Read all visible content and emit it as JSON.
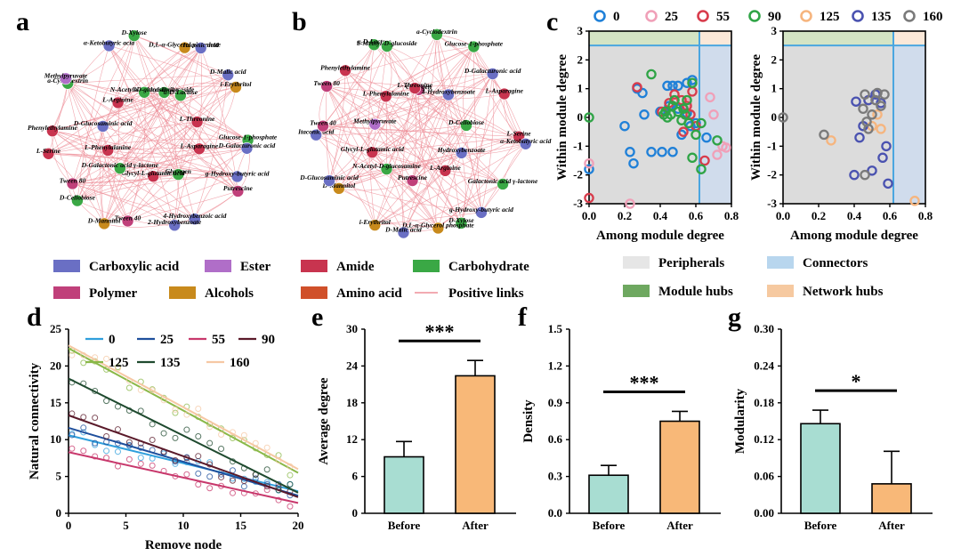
{
  "figure": {
    "panel_labels": [
      "a",
      "b",
      "c",
      "d",
      "e",
      "f",
      "g"
    ],
    "network_a": {
      "labels": [
        "b-Methyl-D-glucoside",
        "D,L-α-Glycerol phosphate",
        "Itaconic acid",
        "α-D-Lactose",
        "D-Malic acid",
        "i-Erythritol",
        "L-Threonine",
        "Glucose-1-phosphate",
        "D-Galacturonic acid",
        "L-Asparagine",
        "g-Hydroxy-butyric acid",
        "Putrescine",
        "Glycogen",
        "4-Hydroxybenzoic acid",
        "2-Hydroxybenzoate",
        "Glycyl-L-glutamic acid",
        "Tween 40",
        "D-Mannitol",
        "D-Galactonic acid γ-lactone",
        "D-Cellobiose",
        "Tween 80",
        "L-Phenylalanine",
        "L-Serine",
        "Phenylethylamine",
        "D-Glucosaminic acid",
        "a-Cyclodextrin",
        "Methylpyruvate",
        "L-Arginine",
        "α-Ketobutyric acid",
        "D-Xylose",
        "N-Acetyl-D-glucosamine"
      ],
      "categories": [
        "green",
        "orange",
        "blue",
        "green",
        "blue",
        "orange",
        "red",
        "green",
        "blue",
        "red",
        "blue",
        "pink",
        "green",
        "blue",
        "blue",
        "red",
        "pink",
        "orange",
        "green",
        "green",
        "pink",
        "red",
        "red",
        "red",
        "blue",
        "green",
        "purple",
        "red",
        "blue",
        "green",
        "green"
      ]
    },
    "network_b": {
      "labels": [
        "Glycogen",
        "a-Cyclodextrin",
        "Glucose-1-phosphate",
        "4-Hydroxybenzoate",
        "D-Galacturonic acid",
        "L-Asparagine",
        "D-Cellobiose",
        "L-Serine",
        "α-Ketobutyric acid",
        "Hydroxybenzoate",
        "Galactonic acid γ-lactone",
        "g-Hydroxy-butyric acid",
        "L-Arginine",
        "D-Xylose",
        "D,L-α-Glycerol phosphate",
        "Putrescine",
        "D-Malic acid",
        "i-Erythritol",
        "N-Acetyl-D-glucosamine",
        "D-Mannitol",
        "D-Glucosaminic acid",
        "Glycyl-L-glutamic acid",
        "Itaconic acid",
        "Tween 40",
        "Methylpyruvate",
        "Tween 80",
        "Phenylethylamine",
        "L-Phenylalanine",
        "α-D-Lactose",
        "b-Methyl-D-glucoside",
        "L-Threonine"
      ],
      "categories": [
        "pink",
        "green",
        "green",
        "blue",
        "blue",
        "red",
        "green",
        "red",
        "blue",
        "blue",
        "green",
        "blue",
        "red",
        "green",
        "orange",
        "pink",
        "blue",
        "orange",
        "green",
        "orange",
        "blue",
        "red",
        "blue",
        "pink",
        "purple",
        "pink",
        "red",
        "red",
        "green",
        "green",
        "red"
      ]
    },
    "category_colors": {
      "blue": "#6a6fc4",
      "purple": "#b06ec8",
      "red": "#c8344f",
      "green": "#3aa845",
      "pink": "#c0407a",
      "orange": "#c88a1c",
      "amino": "#d0502a",
      "link": "#ee8f98"
    },
    "network_legend": [
      {
        "label": "Carboxylic acid",
        "color": "#6a6fc4",
        "kind": "box"
      },
      {
        "label": "Ester",
        "color": "#b06ec8",
        "kind": "box"
      },
      {
        "label": "Amide",
        "color": "#c8344f",
        "kind": "box"
      },
      {
        "label": "Carbohydrate",
        "color": "#3aa845",
        "kind": "box"
      },
      {
        "label": "Polymer",
        "color": "#c0407a",
        "kind": "box"
      },
      {
        "label": "Alcohols",
        "color": "#c88a1c",
        "kind": "box"
      },
      {
        "label": "Amino acid",
        "color": "#d0502a",
        "kind": "box"
      },
      {
        "label": "Positive links",
        "color": "#ee8f98",
        "kind": "line"
      }
    ]
  },
  "chart_data": [
    {
      "id": "c",
      "type": "scatter",
      "title": "",
      "xlabel": "Among module degree",
      "ylabel": "Within module degree",
      "xlim": [
        0.0,
        0.8
      ],
      "ylim": [
        -3,
        3
      ],
      "xticks": [
        "0.0",
        "0.2",
        "0.4",
        "0.6",
        "0.8"
      ],
      "yticks": [
        "3",
        "2",
        "1",
        "0",
        "-1",
        "-2",
        "-3"
      ],
      "threshold_x": 0.62,
      "threshold_y": 2.5,
      "legend": [
        {
          "label": "0",
          "color": "#1f80d8"
        },
        {
          "label": "25",
          "color": "#f0a0b8"
        },
        {
          "label": "55",
          "color": "#d83c4c"
        },
        {
          "label": "90",
          "color": "#2fa446"
        },
        {
          "label": "125",
          "color": "#f6b57e"
        },
        {
          "label": "135",
          "color": "#4a52b0"
        },
        {
          "label": "160",
          "color": "#7a7a7a"
        }
      ],
      "zone_legend": [
        {
          "label": "Peripherals",
          "color": "#e6e6e6"
        },
        {
          "label": "Connectors",
          "color": "#b8d6ee"
        },
        {
          "label": "Module hubs",
          "color": "#6ea860"
        },
        {
          "label": "Network hubs",
          "color": "#f6c9a0"
        }
      ],
      "left_series": [
        {
          "name": "0",
          "points": [
            [
              0.27,
              1.0
            ],
            [
              0.3,
              0.85
            ],
            [
              0.44,
              1.1
            ],
            [
              0.47,
              1.1
            ],
            [
              0.5,
              1.1
            ],
            [
              0.55,
              1.2
            ],
            [
              0.58,
              1.3
            ],
            [
              0.2,
              -0.3
            ],
            [
              0.23,
              -1.2
            ],
            [
              0.25,
              -1.6
            ],
            [
              0.31,
              0.1
            ],
            [
              0.35,
              -1.2
            ],
            [
              0.41,
              -1.2
            ],
            [
              0.47,
              -1.2
            ],
            [
              0.52,
              -0.6
            ],
            [
              0.55,
              0.15
            ],
            [
              0.57,
              -0.3
            ],
            [
              0.6,
              -0.2
            ],
            [
              0.66,
              -0.7
            ],
            [
              0.4,
              0.2
            ],
            [
              0.45,
              0.4
            ],
            [
              0.5,
              0.3
            ],
            [
              0.0,
              -1.8
            ]
          ]
        },
        {
          "name": "25",
          "points": [
            [
              0.68,
              0.7
            ],
            [
              0.7,
              0.1
            ],
            [
              0.75,
              -1.0
            ],
            [
              0.77,
              -1.05
            ],
            [
              0.72,
              -1.3
            ],
            [
              0.0,
              -1.6
            ],
            [
              0.23,
              -3.0
            ],
            [
              0.55,
              0.5
            ]
          ]
        },
        {
          "name": "55",
          "points": [
            [
              0.27,
              1.05
            ],
            [
              0.41,
              0.2
            ],
            [
              0.45,
              0.5
            ],
            [
              0.48,
              0.8
            ],
            [
              0.52,
              0.6
            ],
            [
              0.55,
              0.4
            ],
            [
              0.57,
              0.1
            ],
            [
              0.6,
              -0.3
            ],
            [
              0.58,
              0.9
            ],
            [
              0.65,
              -1.5
            ],
            [
              0.0,
              -2.8
            ],
            [
              0.53,
              -0.5
            ]
          ]
        },
        {
          "name": "90",
          "points": [
            [
              0.35,
              1.5
            ],
            [
              0.43,
              0.2
            ],
            [
              0.44,
              0.0
            ],
            [
              0.46,
              0.1
            ],
            [
              0.48,
              0.6
            ],
            [
              0.5,
              0.2
            ],
            [
              0.52,
              -0.1
            ],
            [
              0.53,
              0.3
            ],
            [
              0.54,
              0.1
            ],
            [
              0.55,
              0.6
            ],
            [
              0.56,
              -0.2
            ],
            [
              0.58,
              1.2
            ],
            [
              0.6,
              -0.6
            ],
            [
              0.63,
              -0.2
            ],
            [
              0.58,
              -1.4
            ],
            [
              0.63,
              -1.8
            ],
            [
              0.72,
              -0.8
            ],
            [
              0.0,
              0.0
            ],
            [
              0.47,
              0.4
            ],
            [
              0.42,
              0.1
            ]
          ]
        }
      ],
      "right_series": [
        {
          "name": "125",
          "points": [
            [
              0.27,
              -0.8
            ],
            [
              0.5,
              -0.3
            ],
            [
              0.53,
              0.1
            ],
            [
              0.55,
              -0.4
            ],
            [
              0.74,
              -2.9
            ],
            [
              0.48,
              0.6
            ]
          ]
        },
        {
          "name": "135",
          "points": [
            [
              0.41,
              0.55
            ],
            [
              0.45,
              -0.3
            ],
            [
              0.43,
              -0.7
            ],
            [
              0.48,
              0.6
            ],
            [
              0.52,
              0.8
            ],
            [
              0.55,
              0.5
            ],
            [
              0.58,
              -1.0
            ],
            [
              0.56,
              -1.4
            ],
            [
              0.59,
              -2.3
            ],
            [
              0.4,
              -2.0
            ],
            [
              0.5,
              -1.85
            ]
          ]
        },
        {
          "name": "160",
          "points": [
            [
              0.0,
              0.0
            ],
            [
              0.23,
              -0.6
            ],
            [
              0.46,
              0.8
            ],
            [
              0.47,
              -0.15
            ],
            [
              0.5,
              0.1
            ],
            [
              0.52,
              0.6
            ],
            [
              0.55,
              0.4
            ],
            [
              0.53,
              0.85
            ],
            [
              0.57,
              0.8
            ],
            [
              0.46,
              -2.0
            ],
            [
              0.48,
              -0.4
            ],
            [
              0.45,
              0.3
            ]
          ]
        }
      ]
    },
    {
      "id": "d",
      "type": "line",
      "title": "",
      "xlabel": "Remove node",
      "ylabel": "Natural connectivity",
      "xlim": [
        0,
        20
      ],
      "ylim": [
        0,
        25
      ],
      "xticks": [
        "0",
        "5",
        "10",
        "15",
        "20"
      ],
      "yticks": [
        "25",
        "20",
        "15",
        "10",
        "5",
        "0"
      ],
      "series": [
        {
          "name": "0",
          "color": "#2f9fdc",
          "intercept": 10.6,
          "end": 3.0
        },
        {
          "name": "25",
          "color": "#1e4f9c",
          "intercept": 11.6,
          "end": 2.4
        },
        {
          "name": "55",
          "color": "#c8386c",
          "intercept": 8.3,
          "end": 1.4
        },
        {
          "name": "90",
          "color": "#5a1a2a",
          "intercept": 13.3,
          "end": 2.2
        },
        {
          "name": "125",
          "color": "#8ab848",
          "intercept": 22.4,
          "end": 5.5
        },
        {
          "name": "135",
          "color": "#1f4a2f",
          "intercept": 18.3,
          "end": 2.8
        },
        {
          "name": "160",
          "color": "#f6c8a4",
          "intercept": 22.8,
          "end": 6.0
        }
      ]
    },
    {
      "id": "e",
      "type": "bar",
      "title": "",
      "xlabel": "",
      "ylabel": "Average degree",
      "categories": [
        "Before",
        "After"
      ],
      "values": [
        9.2,
        22.4
      ],
      "errors": [
        2.5,
        2.5
      ],
      "colors": [
        "#a8ddd2",
        "#f8b878"
      ],
      "ylim": [
        0,
        30
      ],
      "yticks": [
        "30",
        "24",
        "18",
        "12",
        "6",
        "0"
      ],
      "significance": "***"
    },
    {
      "id": "f",
      "type": "bar",
      "title": "",
      "xlabel": "",
      "ylabel": "Density",
      "categories": [
        "Before",
        "After"
      ],
      "values": [
        0.31,
        0.75
      ],
      "errors": [
        0.08,
        0.08
      ],
      "colors": [
        "#a8ddd2",
        "#f8b878"
      ],
      "ylim": [
        0,
        1.5
      ],
      "yticks": [
        "1.5",
        "1.2",
        "0.9",
        "0.6",
        "0.3",
        "0.0"
      ],
      "significance": "***"
    },
    {
      "id": "g",
      "type": "bar",
      "title": "",
      "xlabel": "",
      "ylabel": "Modularity",
      "categories": [
        "Before",
        "After"
      ],
      "values": [
        0.146,
        0.048
      ],
      "errors": [
        0.022,
        0.053
      ],
      "colors": [
        "#a8ddd2",
        "#f8b878"
      ],
      "ylim": [
        0,
        0.3
      ],
      "yticks": [
        "0.30",
        "0.24",
        "0.18",
        "0.12",
        "0.06",
        "0.00"
      ],
      "significance": "*"
    }
  ]
}
